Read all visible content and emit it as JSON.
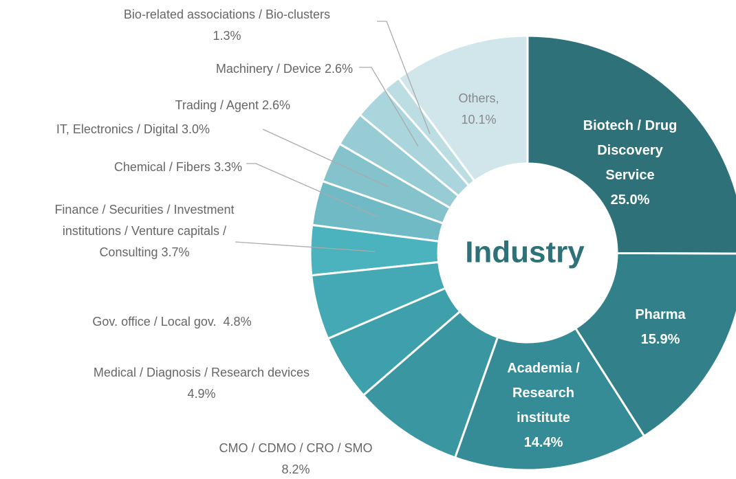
{
  "chart_data": {
    "type": "donut",
    "title": "Industry",
    "categories": [
      "Biotech / Drug Discovery Service",
      "Pharma",
      "Academia / Research institute",
      "CMO / CDMO / CRO / SMO",
      "Medical / Diagnosis / Research devices",
      "Gov. office / Local gov.",
      "Finance / Securities / Investment institutions / Venture capitals / Consulting",
      "Chemical / Fibers",
      "IT, Electronics / Digital",
      "Trading / Agent",
      "Machinery / Device",
      "Bio-related associations / Bio-clusters",
      "Others,"
    ],
    "values": [
      25.0,
      15.9,
      14.4,
      8.2,
      4.9,
      4.8,
      3.7,
      3.3,
      3.0,
      2.6,
      2.6,
      1.3,
      10.1
    ],
    "value_labels": [
      "25.0%",
      "15.9%",
      "14.4%",
      "8.2%",
      "4.9%",
      "4.8%",
      "3.7%",
      "3.3%",
      "3.0%",
      "2.6%",
      "2.6%",
      "1.3%",
      "10.1%"
    ],
    "colors": [
      "#2e7178",
      "#32808a",
      "#368c96",
      "#3a97a2",
      "#3ea0aa",
      "#44a9b4",
      "#4ab3bd",
      "#6fbac4",
      "#85c3cc",
      "#98ccd4",
      "#aad5dc",
      "#bcdee3",
      "#d0e6ea"
    ]
  }
}
